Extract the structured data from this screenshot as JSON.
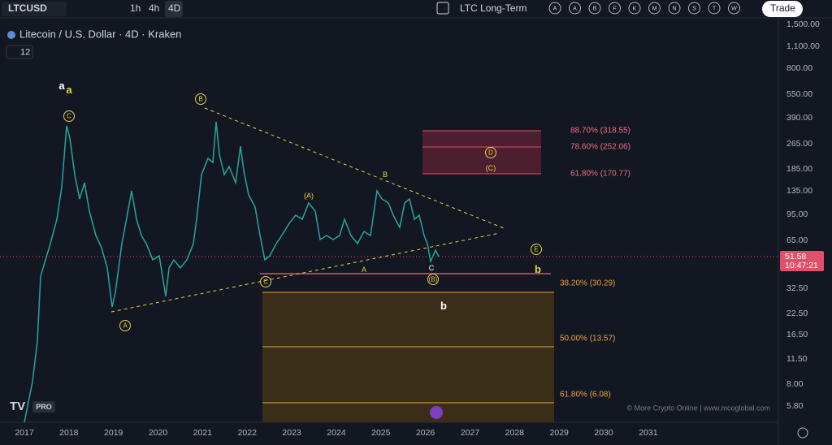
{
  "toolbar": {
    "symbol": "LTCUSD",
    "intervals": [
      "1h",
      "4h",
      "4D"
    ],
    "layout_name": "LTC Long-Term",
    "alert_letters": [
      "A",
      "A",
      "B",
      "F",
      "K",
      "M",
      "N",
      "S",
      "T",
      "W"
    ],
    "trade": "Trade"
  },
  "legend": {
    "title": "Litecoin / U.S. Dollar · 4D · Kraken",
    "indicator_count": "12"
  },
  "price_axis": {
    "labels": [
      "1,500.00",
      "1,100.00",
      "800.00",
      "550.00",
      "390.00",
      "265.00",
      "185.00",
      "135.00",
      "95.00",
      "65.00",
      "32.50",
      "22.50",
      "16.50",
      "11.50",
      "8.00",
      "5.80"
    ],
    "current_price": "51.58",
    "countdown": "10:47:21"
  },
  "time_axis": {
    "labels": [
      "2017",
      "2018",
      "2019",
      "2020",
      "2021",
      "2022",
      "2023",
      "2024",
      "2025",
      "2026",
      "2027",
      "2028",
      "2029",
      "2030",
      "2031"
    ]
  },
  "wave_labels": [
    "a",
    "a",
    "C",
    "B",
    "A",
    "C",
    "(A)",
    "A",
    "B",
    "C",
    "(B)",
    "D",
    "(C)",
    "E",
    "b",
    "b"
  ],
  "fib_levels": [
    "88.70% (318.55)",
    "78.60% (252.06)",
    "61.80% (170.77)",
    "38.20% (30.29)",
    "50.00% (13.57)",
    "61.80% (6.08)"
  ],
  "watermark": "© More Crypto Online  |  www.mcoglobal.com",
  "logo_badge": "PRO"
}
